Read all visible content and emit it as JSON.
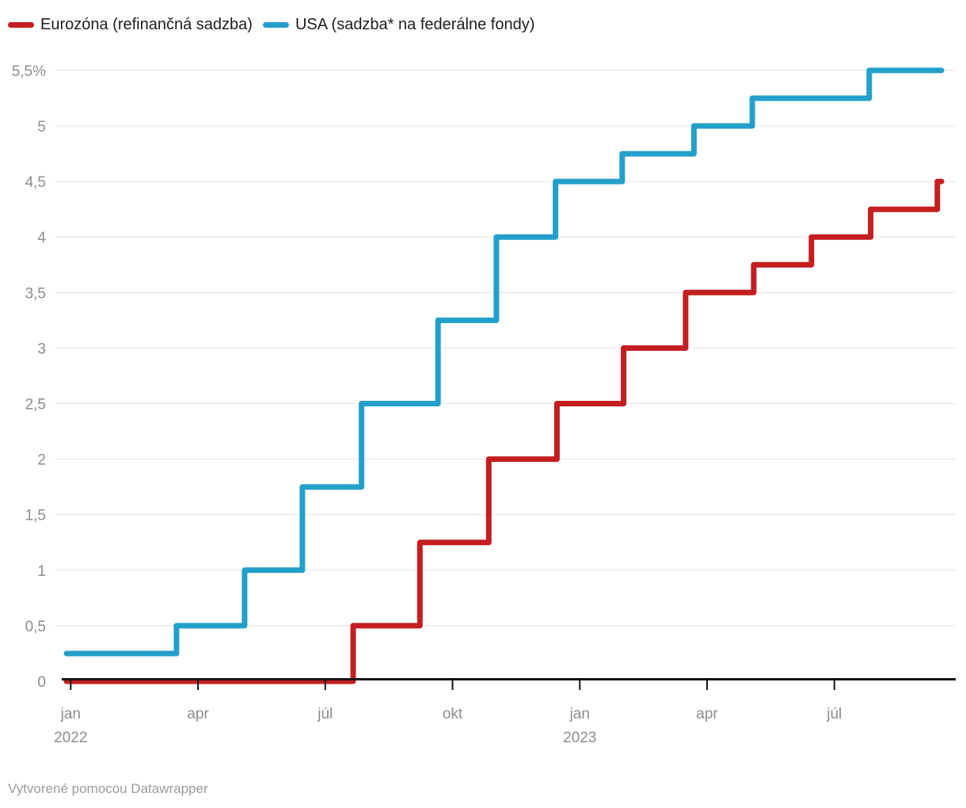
{
  "legend": {
    "items": [
      {
        "id": "eurozone",
        "label": "Eurozóna (refinančná sadzba)",
        "color": "#c41e21"
      },
      {
        "id": "usa",
        "label": "USA (sadzba* na federálne fondy)",
        "color": "#23a0c9"
      }
    ]
  },
  "footer": {
    "text": "Vytvorené pomocou Datawrapper"
  },
  "chart_data": {
    "type": "line",
    "line_style": "step-after",
    "title": "",
    "xlabel": "",
    "ylabel": "",
    "ylim": [
      0,
      5.5
    ],
    "grid": "horizontal",
    "legend_position": "top-left",
    "unit": "%",
    "y_axis": {
      "ticks": [
        {
          "value": 0,
          "label": "0"
        },
        {
          "value": 0.5,
          "label": "0,5"
        },
        {
          "value": 1,
          "label": "1"
        },
        {
          "value": 1.5,
          "label": "1,5"
        },
        {
          "value": 2,
          "label": "2"
        },
        {
          "value": 2.5,
          "label": "2,5"
        },
        {
          "value": 3,
          "label": "3"
        },
        {
          "value": 3.5,
          "label": "3,5"
        },
        {
          "value": 4,
          "label": "4"
        },
        {
          "value": 4.5,
          "label": "4,5"
        },
        {
          "value": 5,
          "label": "5"
        },
        {
          "value": 5.5,
          "label": "5,5%"
        }
      ]
    },
    "x_axis": {
      "ticks": [
        {
          "date": "2022-01",
          "label": "jan",
          "year": "2022"
        },
        {
          "date": "2022-04",
          "label": "apr"
        },
        {
          "date": "2022-07",
          "label": "júl"
        },
        {
          "date": "2022-10",
          "label": "okt"
        },
        {
          "date": "2023-01",
          "label": "jan",
          "year": "2023"
        },
        {
          "date": "2023-04",
          "label": "apr"
        },
        {
          "date": "2023-07",
          "label": "júl"
        }
      ]
    },
    "series": [
      {
        "name": "Eurozóna (refinančná sadzba)",
        "color": "#c41e21",
        "points": [
          [
            "2022-01-01",
            0
          ],
          [
            "2022-07-21",
            0.5
          ],
          [
            "2022-09-08",
            1.25
          ],
          [
            "2022-10-27",
            2
          ],
          [
            "2022-12-15",
            2.5
          ],
          [
            "2023-02-02",
            3
          ],
          [
            "2023-03-16",
            3.5
          ],
          [
            "2023-05-04",
            3.75
          ],
          [
            "2023-06-15",
            4
          ],
          [
            "2023-07-27",
            4.25
          ],
          [
            "2023-09-14",
            4.5
          ]
        ]
      },
      {
        "name": "USA (sadzba* na federálne fondy)",
        "color": "#23a0c9",
        "points": [
          [
            "2022-01-01",
            0.25
          ],
          [
            "2022-03-16",
            0.5
          ],
          [
            "2022-05-04",
            1
          ],
          [
            "2022-06-15",
            1.75
          ],
          [
            "2022-07-27",
            2.5
          ],
          [
            "2022-09-21",
            3.25
          ],
          [
            "2022-11-02",
            4
          ],
          [
            "2022-12-14",
            4.5
          ],
          [
            "2023-02-01",
            4.75
          ],
          [
            "2023-03-22",
            5
          ],
          [
            "2023-05-03",
            5.25
          ],
          [
            "2023-07-26",
            5.5
          ]
        ]
      }
    ]
  }
}
